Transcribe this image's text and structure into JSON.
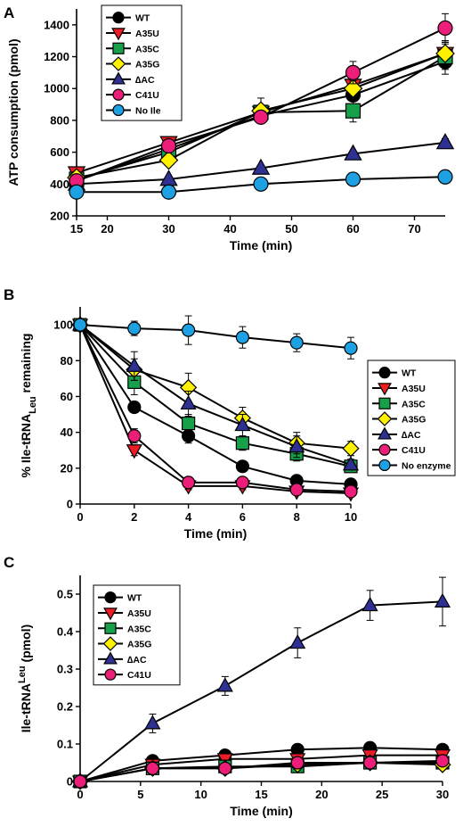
{
  "figure": {
    "panel_labels": [
      "A",
      "B",
      "C"
    ]
  },
  "colors": {
    "WT": "#000000",
    "A35U": "#ee1c24",
    "A35C": "#17a04a",
    "A35G": "#fff200",
    "dAC": "#2e3192",
    "C41U": "#ec1e79",
    "NoIle": "#1da1e2"
  },
  "chart_data": [
    {
      "panel": "A",
      "type": "line",
      "title": "",
      "xlabel": "Time (min)",
      "ylabel": "ATP consumption (pmol)",
      "xlim": [
        15,
        75
      ],
      "ylim": [
        200,
        1500
      ],
      "xticks": [
        15,
        20,
        30,
        40,
        50,
        60,
        70
      ],
      "yticks": [
        200,
        400,
        600,
        800,
        1000,
        1200,
        1400
      ],
      "x": [
        15,
        30,
        45,
        60,
        75
      ],
      "legend_position": "top-left",
      "series": [
        {
          "name": "WT",
          "marker": "circle",
          "color": "#000000",
          "values": [
            420,
            620,
            830,
            960,
            1170
          ],
          "err": [
            0,
            0,
            0,
            40,
            80
          ]
        },
        {
          "name": "A35U",
          "marker": "triangle-down",
          "color": "#ee1c24",
          "values": [
            470,
            660,
            850,
            1020,
            1220
          ],
          "err": [
            0,
            0,
            0,
            30,
            80
          ]
        },
        {
          "name": "A35C",
          "marker": "square",
          "color": "#17a04a",
          "values": [
            430,
            600,
            850,
            860,
            1200
          ],
          "err": [
            0,
            0,
            0,
            70,
            80
          ]
        },
        {
          "name": "A35G",
          "marker": "diamond",
          "color": "#fff200",
          "values": [
            440,
            550,
            860,
            1000,
            1220
          ],
          "err": [
            0,
            0,
            80,
            50,
            80
          ]
        },
        {
          "name": "∆AC",
          "marker": "triangle-up",
          "color": "#2e3192",
          "values": [
            400,
            430,
            500,
            590,
            660
          ],
          "err": [
            0,
            0,
            0,
            0,
            25
          ]
        },
        {
          "name": "C41U",
          "marker": "circle",
          "color": "#ec1e79",
          "values": [
            420,
            640,
            820,
            1100,
            1380
          ],
          "err": [
            0,
            0,
            40,
            70,
            90
          ]
        },
        {
          "name": "No Ile",
          "marker": "circle",
          "color": "#1da1e2",
          "values": [
            350,
            350,
            400,
            430,
            445
          ],
          "err": [
            0,
            0,
            0,
            0,
            0
          ]
        }
      ]
    },
    {
      "panel": "B",
      "type": "line",
      "title": "",
      "xlabel": "Time (min)",
      "ylabel": "% Ile-tRNALeu remaining",
      "ylabel_main": "% Ile-tRNA",
      "ylabel_sub": "Leu",
      "ylabel_end": " remaining",
      "xlim": [
        0,
        10
      ],
      "ylim": [
        0,
        110
      ],
      "xticks": [
        0,
        2,
        4,
        6,
        8,
        10
      ],
      "yticks": [
        0,
        20,
        40,
        60,
        80,
        100
      ],
      "x": [
        0,
        2,
        4,
        6,
        8,
        10
      ],
      "legend_position": "right",
      "series": [
        {
          "name": "WT",
          "marker": "circle",
          "color": "#000000",
          "values": [
            100,
            54,
            38,
            21,
            13,
            11
          ],
          "err": [
            0,
            3,
            4,
            2,
            2,
            2
          ]
        },
        {
          "name": "A35U",
          "marker": "triangle-down",
          "color": "#ee1c24",
          "values": [
            100,
            30,
            10,
            10,
            7,
            6
          ],
          "err": [
            0,
            3,
            2,
            2,
            2,
            2
          ]
        },
        {
          "name": "A35C",
          "marker": "square",
          "color": "#17a04a",
          "values": [
            100,
            68,
            45,
            34,
            28,
            21
          ],
          "err": [
            0,
            7,
            5,
            4,
            4,
            3
          ]
        },
        {
          "name": "A35G",
          "marker": "diamond",
          "color": "#fff200",
          "values": [
            100,
            75,
            65,
            48,
            34,
            31
          ],
          "err": [
            0,
            6,
            8,
            6,
            6,
            4
          ]
        },
        {
          "name": "∆AC",
          "marker": "triangle-up",
          "color": "#2e3192",
          "values": [
            100,
            77,
            56,
            44,
            32,
            22
          ],
          "err": [
            0,
            8,
            7,
            6,
            6,
            3
          ]
        },
        {
          "name": "C41U",
          "marker": "circle",
          "color": "#ec1e79",
          "values": [
            100,
            38,
            12,
            12,
            8,
            7
          ],
          "err": [
            0,
            4,
            3,
            2,
            2,
            2
          ]
        },
        {
          "name": "No enzyme",
          "marker": "circle",
          "color": "#1da1e2",
          "values": [
            100,
            98,
            97,
            93,
            90,
            87
          ],
          "err": [
            0,
            4,
            8,
            6,
            5,
            6
          ]
        }
      ]
    },
    {
      "panel": "C",
      "type": "line",
      "title": "",
      "xlabel": "Time (min)",
      "ylabel": "Ile-tRNALeu (pmol)",
      "ylabel_main": "Ile-tRNA",
      "ylabel_sub": "Leu",
      "ylabel_end": " (pmol)",
      "xlim": [
        0,
        30
      ],
      "ylim": [
        0,
        0.55
      ],
      "xticks": [
        0,
        5,
        10,
        15,
        20,
        25,
        30
      ],
      "yticks": [
        0,
        0.1,
        0.2,
        0.3,
        0.4,
        0.5
      ],
      "x": [
        0,
        6,
        12,
        18,
        24,
        30
      ],
      "legend_position": "top-left",
      "series": [
        {
          "name": "WT",
          "marker": "circle",
          "color": "#000000",
          "values": [
            0,
            0.055,
            0.07,
            0.085,
            0.09,
            0.085
          ],
          "err": [
            0,
            0,
            0,
            0,
            0,
            0
          ]
        },
        {
          "name": "A35U",
          "marker": "triangle-down",
          "color": "#ee1c24",
          "values": [
            0,
            0.045,
            0.06,
            0.06,
            0.07,
            0.07
          ],
          "err": [
            0,
            0,
            0,
            0,
            0,
            0
          ]
        },
        {
          "name": "A35C",
          "marker": "square",
          "color": "#17a04a",
          "values": [
            0,
            0.035,
            0.04,
            0.04,
            0.05,
            0.05
          ],
          "err": [
            0,
            0,
            0,
            0,
            0,
            0
          ]
        },
        {
          "name": "A35G",
          "marker": "diamond",
          "color": "#fff200",
          "values": [
            0,
            0.035,
            0.035,
            0.045,
            0.05,
            0.045
          ],
          "err": [
            0,
            0,
            0,
            0,
            0,
            0
          ]
        },
        {
          "name": "∆AC",
          "marker": "triangle-up",
          "color": "#2e3192",
          "values": [
            0,
            0.155,
            0.255,
            0.37,
            0.47,
            0.48
          ],
          "err": [
            0,
            0.025,
            0.025,
            0.04,
            0.04,
            0.065
          ]
        },
        {
          "name": "C41U",
          "marker": "circle",
          "color": "#ec1e79",
          "values": [
            0,
            0.035,
            0.035,
            0.05,
            0.05,
            0.055
          ],
          "err": [
            0,
            0,
            0,
            0,
            0,
            0
          ]
        }
      ]
    }
  ]
}
